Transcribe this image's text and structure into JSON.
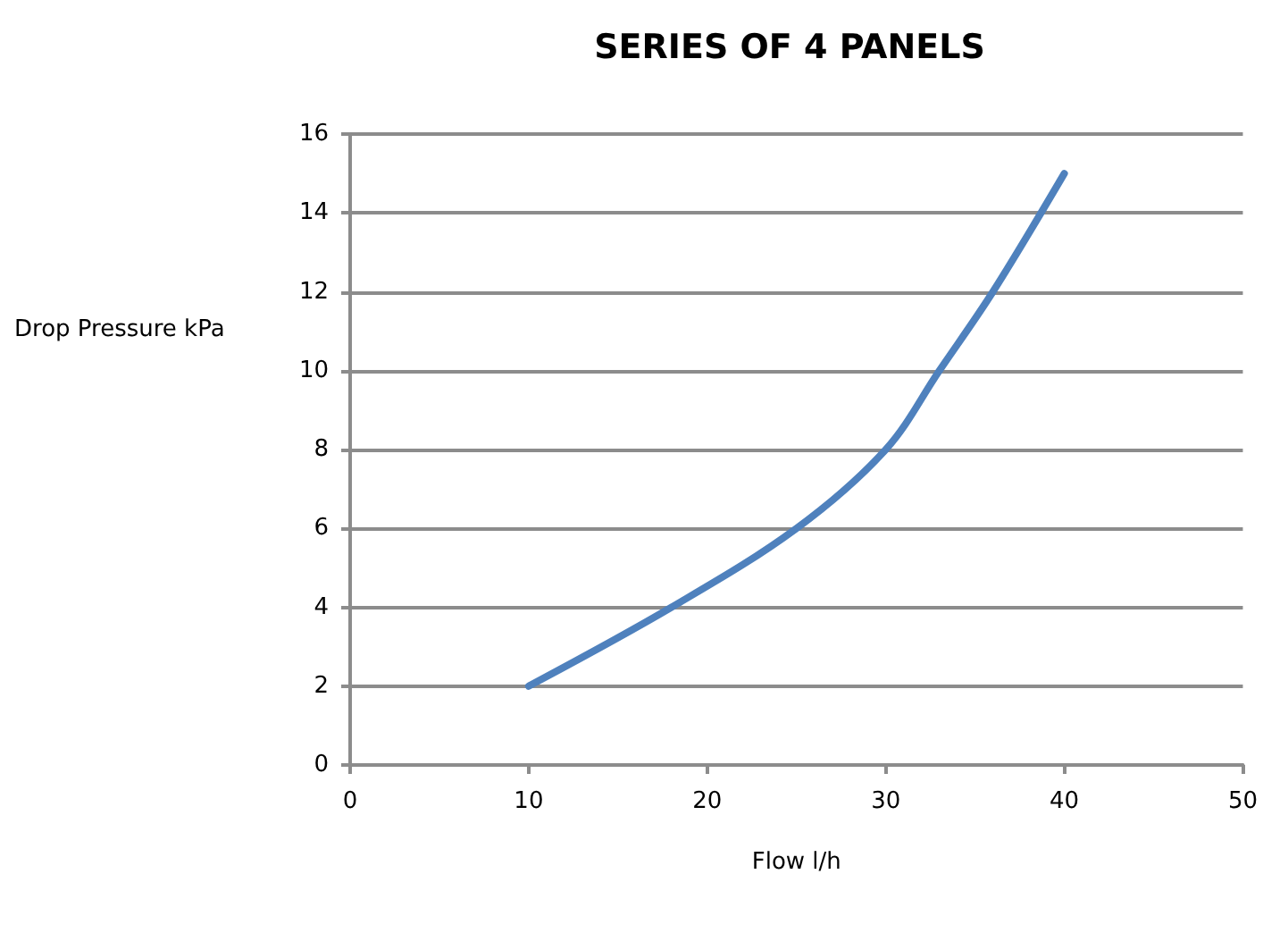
{
  "chart_data": {
    "type": "line",
    "title": "SERIES OF 4 PANELS",
    "xlabel": "Flow l/h",
    "ylabel": "Drop Pressure kPa",
    "x": [
      10,
      18,
      25,
      30,
      33,
      36,
      40
    ],
    "series": [
      {
        "color": "#4f81bd",
        "values": [
          2,
          4,
          6,
          8,
          10,
          12,
          15
        ]
      }
    ],
    "xlim": [
      0,
      50
    ],
    "xticks": [
      0,
      10,
      20,
      30,
      40,
      50
    ],
    "ylim": [
      0,
      16
    ],
    "yticks": [
      0,
      2,
      4,
      6,
      8,
      10,
      12,
      14,
      16
    ],
    "grid": "y",
    "marker": "none",
    "line_style": "solid"
  }
}
